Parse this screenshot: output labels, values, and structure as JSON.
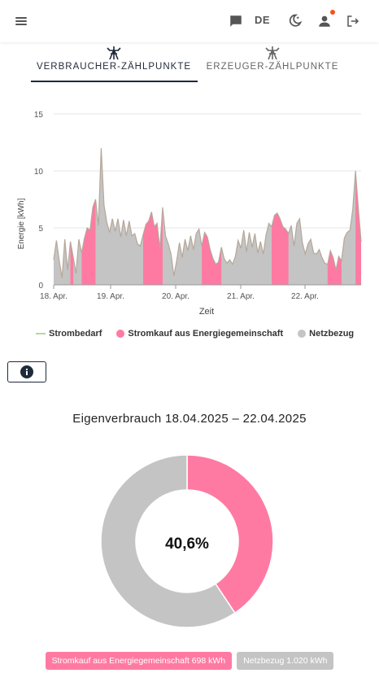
{
  "header": {
    "language": "DE",
    "icons": [
      "menu-icon",
      "chat-icon",
      "dark-mode-icon",
      "user-icon",
      "logout-icon"
    ],
    "notification_color": "#f4511e"
  },
  "tabs": [
    {
      "label": "VERBRAUCHER-ZÄHLPUNKTE",
      "active": true
    },
    {
      "label": "ERZEUGER-ZÄHLPUNKTE",
      "active": false
    }
  ],
  "chart_data": {
    "type": "area",
    "xlabel": "Zeit",
    "ylabel": "Energie [kWh]",
    "ylim": [
      0,
      15
    ],
    "yticks": [
      "0",
      "5",
      "10",
      "15"
    ],
    "xticks": [
      "18. Apr.",
      "19. Apr.",
      "20. Apr.",
      "21. Apr.",
      "22. Apr."
    ],
    "grid": "horizontal",
    "legend_position": "bottom",
    "colors": {
      "Strombedarf": "#b8d7a0",
      "Stromkauf aus Energiegemeinschaft": "#ff7aa2",
      "Netzbezug": "#c4c4c4"
    },
    "series": [
      {
        "name": "Strombedarf",
        "values": [
          2.2,
          3.9,
          2.1,
          0.6,
          4.0,
          1.3,
          3.8,
          2.4,
          1.0,
          4.0,
          2.8,
          4.1,
          5.0,
          4.8,
          6.8,
          7.5,
          5.2,
          12.0,
          7.0,
          5.5,
          4.6,
          5.8,
          4.7,
          5.8,
          4.2,
          5.7,
          4.3,
          5.6,
          4.3,
          4.5,
          3.6,
          3.4,
          4.4,
          5.3,
          5.6,
          6.4,
          5.1,
          5.4,
          3.2,
          6.8,
          4.3,
          3.6,
          2.7,
          0.8,
          2.1,
          3.7,
          2.4,
          4.0,
          3.0,
          4.3,
          3.1,
          4.5,
          4.9,
          3.4,
          4.6,
          4.2,
          3.1,
          2.3,
          1.8,
          2.0,
          3.3,
          2.3,
          1.9,
          2.2,
          1.8,
          2.5,
          3.9,
          3.2,
          4.8,
          2.9,
          4.6,
          3.3,
          4.5,
          2.8,
          3.8,
          2.7,
          4.4,
          5.4,
          5.1,
          6.1,
          6.3,
          5.8,
          5.1,
          4.9,
          4.5,
          5.2,
          3.4,
          5.4,
          5.8,
          3.7,
          2.7,
          3.6,
          4.0,
          2.8,
          2.7,
          3.1,
          2.4,
          1.9,
          1.8,
          3.0,
          2.4,
          1.3,
          2.5,
          2.1,
          4.1,
          4.6,
          4.8,
          6.6,
          10.0,
          6.7,
          3.8
        ],
        "spikes_note": ""
      },
      {
        "name": "Stromkauf aus Energiegemeinschaft",
        "values": [
          2.2,
          3.9,
          2.1,
          0.6,
          4.0,
          1.3,
          3.8,
          2.4,
          1.0,
          4.0,
          2.8,
          4.1,
          5.0,
          4.8,
          6.8,
          7.5,
          5.2,
          12.0,
          7.0,
          5.5,
          4.6,
          5.8,
          4.7,
          5.8,
          4.2,
          5.7,
          4.3,
          5.6,
          4.3,
          4.5,
          3.6,
          3.4,
          4.4,
          5.3,
          5.6,
          6.4,
          5.1,
          5.4,
          3.2,
          6.8,
          4.3,
          3.6,
          2.7,
          0.8,
          2.1,
          3.7,
          2.4,
          4.0,
          3.0,
          4.3,
          3.1,
          4.5,
          4.9,
          3.4,
          4.6,
          4.2,
          3.1,
          2.3,
          1.8,
          2.0,
          3.3,
          2.3,
          1.9,
          2.2,
          1.8,
          2.5,
          3.9,
          3.2,
          4.8,
          2.9,
          4.6,
          3.3,
          4.5,
          2.8,
          3.8,
          2.7,
          4.4,
          5.4,
          5.1,
          6.1,
          6.3,
          5.8,
          5.1,
          4.9,
          4.5,
          5.2,
          3.4,
          5.4,
          5.8,
          3.7,
          2.7,
          3.6,
          4.0,
          2.8,
          2.7,
          3.1,
          2.4,
          1.9,
          1.8,
          3.0,
          2.4,
          1.3,
          2.5,
          2.1,
          4.1,
          4.6,
          4.8,
          6.6,
          10.0,
          6.7,
          3.8
        ]
      },
      {
        "name": "Netzbezug",
        "values": [
          2.2,
          3.9,
          2.1,
          0.6,
          4.0,
          1.3,
          3.8,
          2.4,
          1.0,
          4.0,
          2.8,
          4.1,
          5.0,
          4.8,
          6.8,
          7.5,
          5.2,
          12.0,
          7.0,
          5.5,
          4.6,
          5.8,
          4.7,
          5.8,
          4.2,
          5.7,
          4.3,
          5.6,
          4.3,
          4.5,
          3.6,
          3.4,
          4.4,
          5.3,
          5.6,
          6.4,
          5.1,
          5.4,
          3.2,
          6.8,
          4.3,
          3.6,
          2.7,
          0.8,
          2.1,
          3.7,
          2.4,
          4.0,
          3.0,
          4.3,
          3.1,
          4.5,
          4.9,
          3.4,
          4.6,
          4.2,
          3.1,
          2.3,
          1.8,
          2.0,
          3.3,
          2.3,
          1.9,
          2.2,
          1.8,
          2.5,
          3.9,
          3.2,
          4.8,
          2.9,
          4.6,
          3.3,
          4.5,
          2.8,
          3.8,
          2.7,
          4.4,
          5.4,
          5.1,
          6.1,
          6.3,
          5.8,
          5.1,
          4.9,
          4.5,
          5.2,
          3.4,
          5.4,
          5.8,
          3.7,
          2.7,
          3.6,
          4.0,
          2.8,
          2.7,
          3.1,
          2.4,
          1.9,
          1.8,
          3.0,
          2.4,
          1.3,
          2.5,
          2.1,
          4.1,
          4.6,
          4.8,
          6.6,
          10.0,
          6.7,
          3.8
        ]
      }
    ],
    "community_mask": [
      0,
      0,
      0,
      0,
      0,
      0,
      1,
      1,
      0,
      0,
      1,
      1,
      1,
      1,
      1,
      1,
      0,
      0,
      0,
      0,
      0,
      0,
      0,
      0,
      0,
      0,
      0,
      0,
      0,
      0,
      0,
      0,
      1,
      1,
      1,
      1,
      1,
      1,
      1,
      1,
      0,
      0,
      0,
      0,
      0,
      0,
      0,
      0,
      0,
      0,
      0,
      0,
      0,
      1,
      1,
      1,
      1,
      1,
      1,
      1,
      1,
      0,
      0,
      0,
      0,
      0,
      0,
      0,
      0,
      0,
      0,
      0,
      0,
      0,
      0,
      0,
      0,
      0,
      1,
      1,
      1,
      1,
      1,
      1,
      1,
      0,
      0,
      0,
      0,
      0,
      0,
      0,
      0,
      0,
      0,
      0,
      0,
      0,
      1,
      1,
      1,
      1,
      1,
      1,
      0,
      0,
      0,
      0,
      1,
      1,
      1
    ]
  },
  "info_button": {
    "icon": "info-icon"
  },
  "eigenverbrauch": {
    "title": "Eigenverbrauch 18.04.2025 – 22.04.2025",
    "center_label": "40,6%",
    "chart_data": {
      "type": "pie",
      "labels": [
        "Stromkauf aus Energiegemeinschaft",
        "Netzbezug"
      ],
      "values": [
        698,
        1020
      ],
      "units": "kWh",
      "colors": [
        "#ff7aa2",
        "#c4c4c4"
      ]
    },
    "badges": [
      {
        "label": "Stromkauf aus Energiegemeinschaft 698 kWh",
        "color": "#ff7aa2"
      },
      {
        "label": "Netzbezug 1.020 kWh",
        "color": "#c4c4c4"
      }
    ]
  }
}
